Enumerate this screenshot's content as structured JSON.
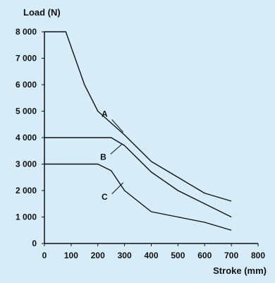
{
  "chart_data": {
    "type": "line",
    "ylabel": "Load (N)",
    "xlabel": "Stroke (mm)",
    "xlim": [
      0,
      800
    ],
    "ylim": [
      0,
      8000
    ],
    "x_ticks": [
      0,
      100,
      200,
      300,
      400,
      500,
      600,
      700,
      800
    ],
    "y_ticks": [
      0,
      1000,
      2000,
      3000,
      4000,
      5000,
      6000,
      7000,
      8000
    ],
    "x_tick_labels": [
      "0",
      "100",
      "200",
      "300",
      "400",
      "500",
      "600",
      "700",
      "800"
    ],
    "y_tick_labels": [
      "0",
      "1 000",
      "2 000",
      "3 000",
      "4 000",
      "5 000",
      "6 000",
      "7 000",
      "8 000"
    ],
    "grid": false,
    "series": [
      {
        "label": "A",
        "label_point": [
          295,
          4200
        ],
        "x": [
          0,
          80,
          150,
          200,
          300,
          400,
          500,
          600,
          700
        ],
        "y": [
          8000,
          8000,
          6000,
          5000,
          4100,
          3100,
          2500,
          1900,
          1600
        ]
      },
      {
        "label": "B",
        "label_point": [
          290,
          3750
        ],
        "x": [
          0,
          250,
          300,
          400,
          500,
          600,
          700
        ],
        "y": [
          4000,
          4000,
          3700,
          2700,
          2000,
          1500,
          1000
        ]
      },
      {
        "label": "C",
        "label_point": [
          295,
          2300
        ],
        "x": [
          0,
          200,
          250,
          300,
          400,
          500,
          600,
          700
        ],
        "y": [
          3000,
          3000,
          2750,
          2000,
          1200,
          1000,
          800,
          500
        ]
      }
    ],
    "colors": {
      "background": "#d6ecf8",
      "lines": "#111111"
    }
  }
}
